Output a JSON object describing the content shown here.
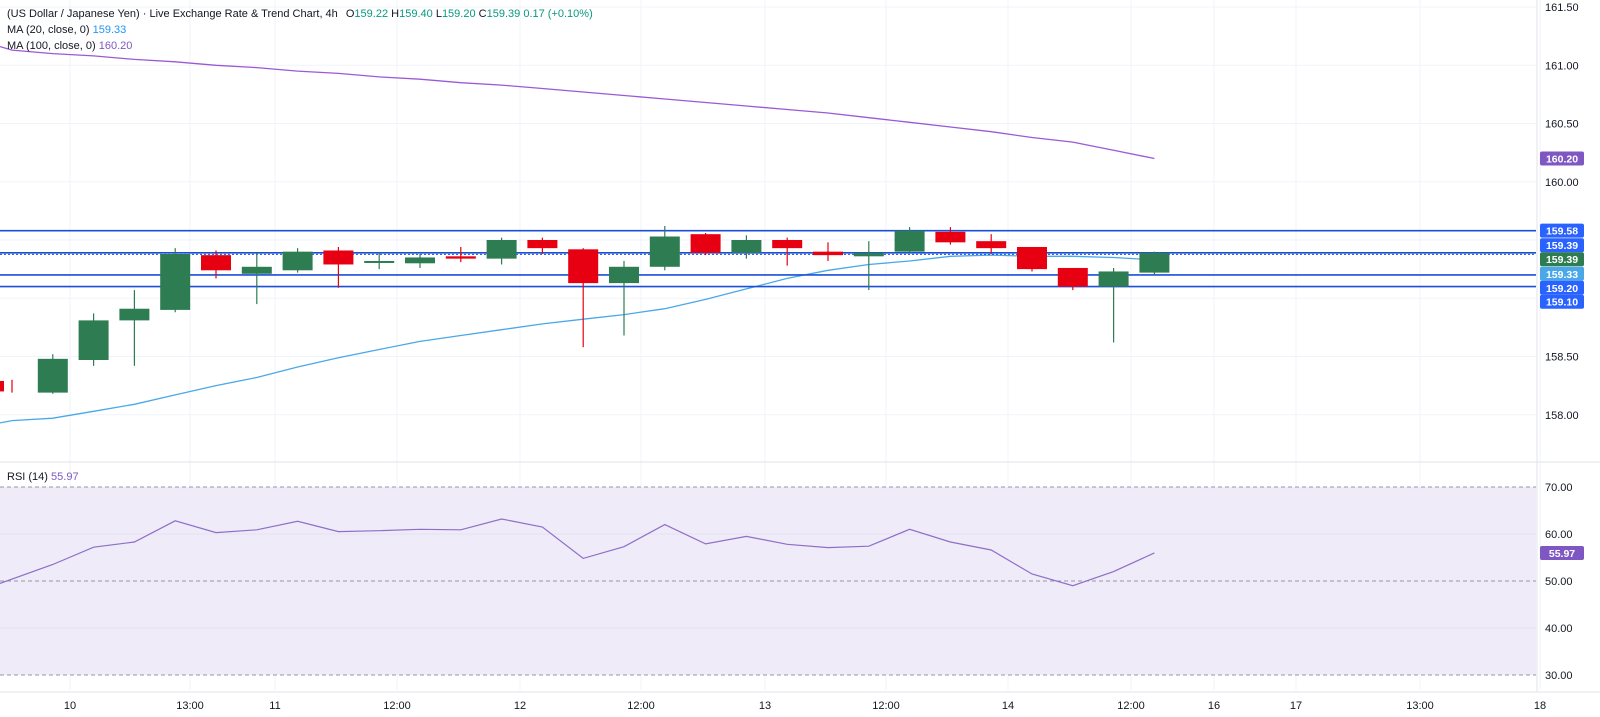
{
  "header": {
    "symbol_title": "(US Dollar / Japanese Yen) · Live Exchange Rate & Trend Chart, 4h",
    "open_label": "O",
    "open": "159.22",
    "high_label": "H",
    "high": "159.40",
    "low_label": "L",
    "low": "159.20",
    "close_label": "C",
    "close": "159.39",
    "change": "0.17 (+0.10%)",
    "ma20_label": "MA (20, close, 0)",
    "ma20_value": "159.33",
    "ma100_label": "MA (100, close, 0)",
    "ma100_value": "160.20"
  },
  "rsi_panel": {
    "label": "RSI (14)",
    "value": "55.97"
  },
  "colors": {
    "up": "#2e7d52",
    "down": "#e60012",
    "ma20": "#4aa8e8",
    "ma100": "#9b59d6",
    "level_line": "#1c4fd8",
    "rsi_line": "#8e6fc7",
    "rsi_band": "#efebf8",
    "grid": "#f0f3fa",
    "badge_blue": "#2962ff",
    "badge_green": "#2e7d52",
    "badge_purple": "#7e57c2"
  },
  "chart_data": [
    {
      "type": "candlestick",
      "title": "(US Dollar / Japanese Yen) · Live Exchange Rate & Trend Chart, 4h",
      "y_ticks": [
        "161.50",
        "161.00",
        "160.50",
        "160.00",
        "158.50",
        "158.00"
      ],
      "ylim": [
        157.6,
        161.5
      ],
      "x_ticks": [
        "10",
        "13:00",
        "11",
        "12:00",
        "12",
        "12:00",
        "13",
        "12:00",
        "14",
        "12:00",
        "16",
        "17",
        "13:00",
        "18"
      ],
      "candles": [
        {
          "o": 158.29,
          "h": 158.3,
          "l": 158.19,
          "c": 158.2
        },
        {
          "o": 158.19,
          "h": 158.52,
          "l": 158.18,
          "c": 158.48
        },
        {
          "o": 158.47,
          "h": 158.87,
          "l": 158.42,
          "c": 158.81
        },
        {
          "o": 158.81,
          "h": 159.07,
          "l": 158.42,
          "c": 158.91
        },
        {
          "o": 158.9,
          "h": 159.43,
          "l": 158.88,
          "c": 159.38
        },
        {
          "o": 159.37,
          "h": 159.41,
          "l": 159.17,
          "c": 159.24
        },
        {
          "o": 159.21,
          "h": 159.39,
          "l": 158.95,
          "c": 159.27
        },
        {
          "o": 159.24,
          "h": 159.43,
          "l": 159.22,
          "c": 159.4
        },
        {
          "o": 159.41,
          "h": 159.44,
          "l": 159.09,
          "c": 159.29
        },
        {
          "o": 159.31,
          "h": 159.39,
          "l": 159.25,
          "c": 159.32
        },
        {
          "o": 159.3,
          "h": 159.38,
          "l": 159.26,
          "c": 159.35
        },
        {
          "o": 159.36,
          "h": 159.44,
          "l": 159.31,
          "c": 159.34
        },
        {
          "o": 159.34,
          "h": 159.52,
          "l": 159.29,
          "c": 159.5
        },
        {
          "o": 159.5,
          "h": 159.52,
          "l": 159.38,
          "c": 159.43
        },
        {
          "o": 159.42,
          "h": 159.43,
          "l": 158.58,
          "c": 159.13
        },
        {
          "o": 159.13,
          "h": 159.32,
          "l": 158.68,
          "c": 159.27
        },
        {
          "o": 159.27,
          "h": 159.62,
          "l": 159.24,
          "c": 159.53
        },
        {
          "o": 159.55,
          "h": 159.56,
          "l": 159.37,
          "c": 159.39
        },
        {
          "o": 159.39,
          "h": 159.54,
          "l": 159.34,
          "c": 159.5
        },
        {
          "o": 159.5,
          "h": 159.52,
          "l": 159.28,
          "c": 159.43
        },
        {
          "o": 159.4,
          "h": 159.48,
          "l": 159.32,
          "c": 159.37
        },
        {
          "o": 159.36,
          "h": 159.49,
          "l": 159.07,
          "c": 159.39
        },
        {
          "o": 159.4,
          "h": 159.61,
          "l": 159.39,
          "c": 159.58
        },
        {
          "o": 159.57,
          "h": 159.61,
          "l": 159.46,
          "c": 159.48
        },
        {
          "o": 159.49,
          "h": 159.55,
          "l": 159.38,
          "c": 159.43
        },
        {
          "o": 159.44,
          "h": 159.44,
          "l": 159.23,
          "c": 159.25
        },
        {
          "o": 159.26,
          "h": 159.26,
          "l": 159.07,
          "c": 159.1
        },
        {
          "o": 159.1,
          "h": 159.26,
          "l": 158.62,
          "c": 159.23
        },
        {
          "o": 159.22,
          "h": 159.4,
          "l": 159.2,
          "c": 159.39
        }
      ],
      "ma20": [
        157.95,
        157.97,
        158.03,
        158.09,
        158.17,
        158.25,
        158.32,
        158.41,
        158.49,
        158.56,
        158.63,
        158.68,
        158.73,
        158.78,
        158.82,
        158.86,
        158.91,
        158.99,
        159.08,
        159.17,
        159.24,
        159.29,
        159.32,
        159.36,
        159.37,
        159.36,
        159.36,
        159.35,
        159.33
      ],
      "ma100": [
        161.13,
        161.1,
        161.08,
        161.05,
        161.03,
        161.0,
        160.98,
        160.95,
        160.93,
        160.9,
        160.88,
        160.85,
        160.83,
        160.8,
        160.77,
        160.74,
        160.71,
        160.68,
        160.65,
        160.62,
        160.59,
        160.55,
        160.51,
        160.47,
        160.43,
        160.38,
        160.34,
        160.27,
        160.2
      ],
      "horizontal_levels": [
        159.58,
        159.39,
        159.2,
        159.1
      ],
      "price_badges": [
        {
          "label": "160.20",
          "value": 160.2,
          "role": "ma100"
        },
        {
          "label": "159.58",
          "value": 159.58,
          "role": "level"
        },
        {
          "label": "159.39",
          "value": 159.455,
          "role": "level"
        },
        {
          "label": "159.39",
          "value": 159.335,
          "role": "price"
        },
        {
          "label": "159.33",
          "value": 159.21,
          "role": "ma20"
        },
        {
          "label": "159.20",
          "value": 159.09,
          "role": "level"
        },
        {
          "label": "159.10",
          "value": 158.97,
          "role": "level"
        }
      ]
    },
    {
      "type": "line",
      "title": "RSI (14)",
      "y_ticks": [
        "70.00",
        "60.00",
        "50.00",
        "40.00",
        "30.00"
      ],
      "ylim": [
        27,
        72
      ],
      "overbought": 70,
      "oversold": 30,
      "midline": 50,
      "values": [
        49.5,
        53.5,
        57.2,
        58.3,
        62.8,
        60.3,
        60.9,
        62.7,
        60.5,
        60.7,
        61.0,
        60.9,
        63.2,
        61.5,
        54.8,
        57.3,
        62.0,
        57.9,
        59.5,
        57.8,
        57.1,
        57.4,
        61.0,
        58.3,
        56.6,
        51.5,
        49.0,
        52.0,
        55.97
      ],
      "last_label": "55.97"
    }
  ]
}
